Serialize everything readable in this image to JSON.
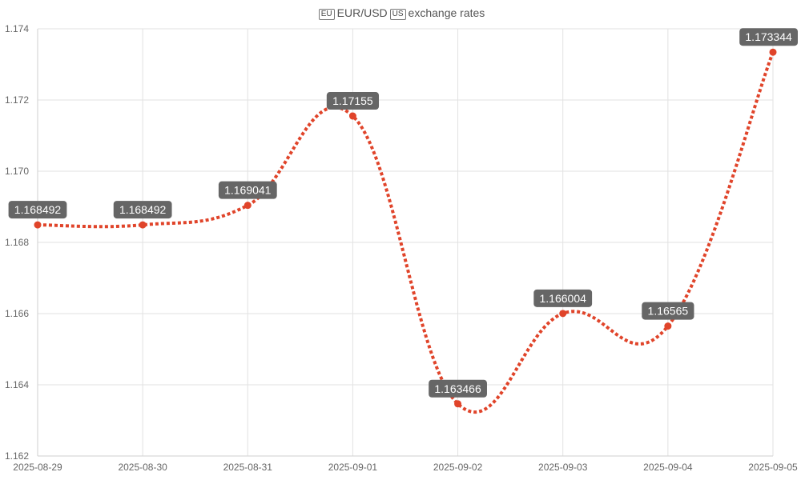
{
  "chart_data": {
    "type": "line",
    "title": {
      "base_flag": "EU",
      "base": "EUR",
      "separator": "/",
      "quote": "USD",
      "quote_flag": "US",
      "suffix": "exchange rates"
    },
    "x": [
      "2025-08-29",
      "2025-08-30",
      "2025-08-31",
      "2025-09-01",
      "2025-09-02",
      "2025-09-03",
      "2025-09-04",
      "2025-09-05"
    ],
    "series": [
      {
        "values": [
          1.168492,
          1.168492,
          1.169041,
          1.17155,
          1.163466,
          1.166004,
          1.16565,
          1.173344
        ],
        "labels": [
          "1.168492",
          "1.168492",
          "1.169041",
          "1.17155",
          "1.163466",
          "1.166004",
          "1.16565",
          "1.173344"
        ]
      }
    ],
    "ylim": [
      1.162,
      1.174
    ],
    "yticks": [
      "1.162",
      "1.164",
      "1.166",
      "1.168",
      "1.170",
      "1.172",
      "1.174"
    ],
    "grid": true,
    "line_style": "dotted",
    "colors": {
      "line": "#e0442a",
      "point": "#e0442a",
      "label_bg": "#666666",
      "label_text": "#ffffff",
      "grid": "#e2e2e2",
      "axis_text": "#666666"
    }
  }
}
